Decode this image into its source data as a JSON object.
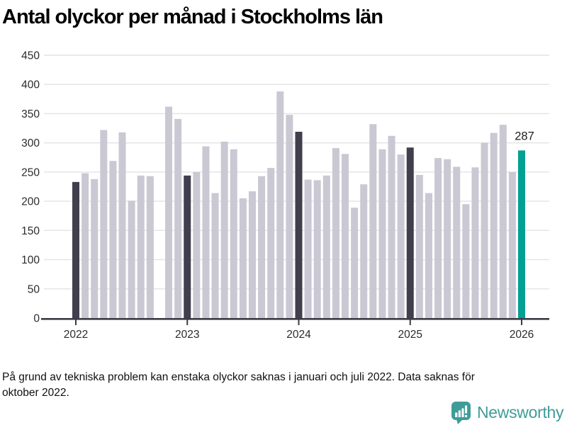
{
  "title": "Antal olyckor per månad i Stockholms län",
  "footnote_lines": [
    "På grund av tekniska problem kan enstaka olyckor saknas i januari och juli 2022. Data saknas för",
    "oktober 2022."
  ],
  "logo": {
    "brand": "Newsworthy",
    "icon": "newsworthy-speech-bubble-bar-chart-icon"
  },
  "colors": {
    "bar_default": "#cac8d3",
    "bar_january": "#413f4d",
    "bar_latest": "#00a092",
    "gridline": "#e3e2e6",
    "axis": "#3b3a45",
    "label_text": "#1d1d1f",
    "logo_teal": "#3f9c99"
  },
  "chart_data": {
    "type": "bar",
    "title": "Antal olyckor per månad i Stockholms län",
    "ylabel": "",
    "xlabel": "",
    "ylim": [
      0,
      450
    ],
    "y_ticks": [
      0,
      50,
      100,
      150,
      200,
      250,
      300,
      350,
      400,
      450
    ],
    "grid": true,
    "legend": "none",
    "x_tick_labels": [
      "2022",
      "2023",
      "2024",
      "2025",
      "2026"
    ],
    "months_per_year": 12,
    "series": [
      {
        "year": "2022",
        "values": [
          233,
          248,
          238,
          322,
          269,
          318,
          201,
          244,
          243,
          null,
          362,
          341
        ]
      },
      {
        "year": "2023",
        "values": [
          244,
          250,
          294,
          214,
          302,
          289,
          205,
          217,
          243,
          257,
          388,
          348
        ]
      },
      {
        "year": "2024",
        "values": [
          319,
          237,
          236,
          244,
          291,
          281,
          189,
          229,
          332,
          289,
          312,
          280
        ]
      },
      {
        "year": "2025",
        "values": [
          292,
          245,
          214,
          274,
          272,
          259,
          195,
          258,
          300,
          317,
          331,
          250
        ]
      },
      {
        "year": "2026",
        "values": [
          287
        ]
      }
    ],
    "missing_months": [
      "2022-10"
    ],
    "highlight_rule": "january-bars-dark, latest-bar-teal",
    "annotation": {
      "label": "287",
      "attached_to": "2026-01"
    }
  }
}
